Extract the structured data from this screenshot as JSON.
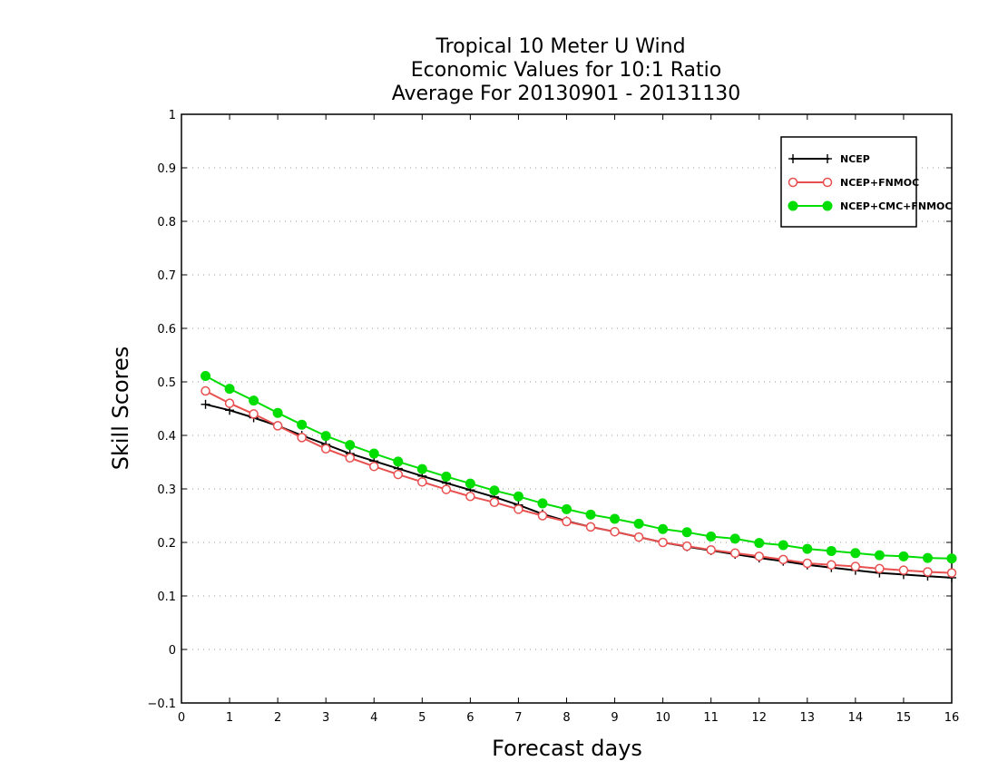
{
  "chart_data": {
    "type": "line",
    "title_lines": [
      "Tropical 10 Meter U Wind",
      "Economic Values for 10:1 Ratio",
      "Average For 20130901 - 20131130"
    ],
    "xlabel": "Forecast days",
    "ylabel": "Skill Scores",
    "xlim": [
      0,
      16
    ],
    "ylim": [
      -0.1,
      1
    ],
    "xticks": [
      0,
      1,
      2,
      3,
      4,
      5,
      6,
      7,
      8,
      9,
      10,
      11,
      12,
      13,
      14,
      15,
      16
    ],
    "yticks": [
      -0.1,
      0,
      0.1,
      0.2,
      0.3,
      0.4,
      0.5,
      0.6,
      0.7,
      0.8,
      0.9,
      1
    ],
    "ytick_labels": [
      "−0.1",
      "0",
      "0.1",
      "0.2",
      "0.3",
      "0.4",
      "0.5",
      "0.6",
      "0.7",
      "0.8",
      "0.9",
      "1"
    ],
    "grid": "horizontal dotted",
    "legend_position": "top-right",
    "x": [
      0.5,
      1,
      1.5,
      2,
      2.5,
      3,
      3.5,
      4,
      4.5,
      5,
      5.5,
      6,
      6.5,
      7,
      7.5,
      8,
      8.5,
      9,
      9.5,
      10,
      10.5,
      11,
      11.5,
      12,
      12.5,
      13,
      13.5,
      14,
      14.5,
      15,
      15.5,
      16
    ],
    "series": [
      {
        "name": "NCEP",
        "color": "#000000",
        "marker": "plus",
        "values": [
          0.458,
          0.447,
          0.433,
          0.418,
          0.4,
          0.383,
          0.366,
          0.352,
          0.338,
          0.324,
          0.311,
          0.298,
          0.285,
          0.27,
          0.253,
          0.24,
          0.229,
          0.22,
          0.21,
          0.2,
          0.192,
          0.185,
          0.178,
          0.171,
          0.165,
          0.158,
          0.153,
          0.148,
          0.143,
          0.14,
          0.137,
          0.134
        ]
      },
      {
        "name": "NCEP+FNMOC",
        "color": "#e8504f",
        "marker": "open-circle",
        "values": [
          0.483,
          0.46,
          0.44,
          0.418,
          0.396,
          0.375,
          0.358,
          0.342,
          0.327,
          0.313,
          0.299,
          0.286,
          0.275,
          0.262,
          0.25,
          0.239,
          0.229,
          0.22,
          0.21,
          0.2,
          0.193,
          0.186,
          0.18,
          0.174,
          0.168,
          0.161,
          0.158,
          0.155,
          0.151,
          0.148,
          0.145,
          0.143
        ]
      },
      {
        "name": "NCEP+CMC+FNMOC",
        "color": "#00dd00",
        "marker": "filled-circle",
        "values": [
          0.511,
          0.487,
          0.465,
          0.442,
          0.42,
          0.399,
          0.382,
          0.366,
          0.351,
          0.337,
          0.323,
          0.31,
          0.297,
          0.286,
          0.273,
          0.262,
          0.252,
          0.244,
          0.235,
          0.225,
          0.219,
          0.211,
          0.207,
          0.199,
          0.195,
          0.188,
          0.184,
          0.18,
          0.176,
          0.174,
          0.171,
          0.17
        ]
      }
    ]
  }
}
